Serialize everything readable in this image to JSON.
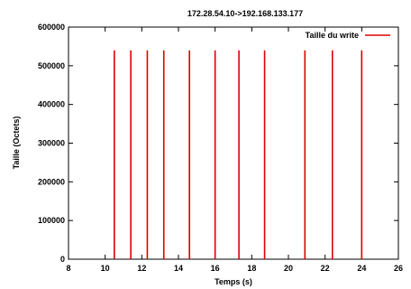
{
  "chart_data": {
    "type": "bar",
    "title": "172.28.54.10->192.168.133.177",
    "xlabel": "Temps (s)",
    "ylabel": "Taille (Octets)",
    "xlim": [
      8,
      26
    ],
    "ylim": [
      0,
      600000
    ],
    "xticks": [
      8,
      10,
      12,
      14,
      16,
      18,
      20,
      22,
      24,
      26
    ],
    "yticks": [
      0,
      100000,
      200000,
      300000,
      400000,
      500000,
      600000
    ],
    "grid": false,
    "legend_position": "top-right",
    "series": [
      {
        "name": "Taille du write",
        "color": "#e00000",
        "points": [
          {
            "x": 10.5,
            "y": 540000
          },
          {
            "x": 11.4,
            "y": 540000
          },
          {
            "x": 12.3,
            "y": 540000
          },
          {
            "x": 13.2,
            "y": 540000
          },
          {
            "x": 14.6,
            "y": 540000
          },
          {
            "x": 16.0,
            "y": 540000
          },
          {
            "x": 17.3,
            "y": 540000
          },
          {
            "x": 18.7,
            "y": 540000
          },
          {
            "x": 20.9,
            "y": 540000
          },
          {
            "x": 22.4,
            "y": 540000
          },
          {
            "x": 24.0,
            "y": 540000
          }
        ]
      }
    ]
  }
}
